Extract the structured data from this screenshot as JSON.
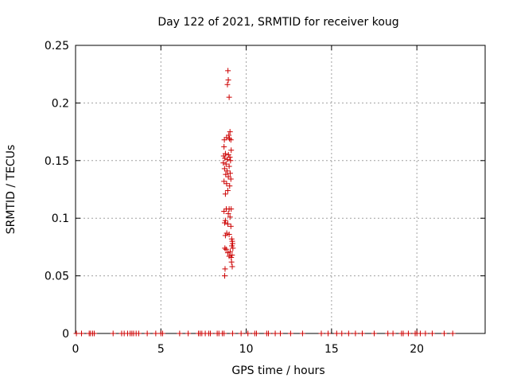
{
  "chart_data": {
    "type": "scatter",
    "title": "Day 122 of 2021, SRMTID for receiver koug",
    "xlabel": "GPS time / hours",
    "ylabel": "SRMTID / TECUs",
    "xlim": [
      0,
      24
    ],
    "ylim": [
      0,
      0.25
    ],
    "x_ticks": [
      0,
      5,
      10,
      15,
      20
    ],
    "y_ticks": [
      0,
      0.05,
      0.1,
      0.15,
      0.2,
      0.25
    ],
    "x_tick_labels": [
      "0",
      "5",
      "10",
      "15",
      "20"
    ],
    "y_tick_labels": [
      "0",
      "0.05",
      "0.1",
      "0.15",
      "0.2",
      "0.25"
    ],
    "grid": true,
    "marker": "+",
    "color": "#cc0000",
    "series": [
      {
        "points": [
          [
            8.93,
            0.228
          ],
          [
            8.95,
            0.22
          ],
          [
            8.9,
            0.216
          ],
          [
            9.0,
            0.205
          ],
          [
            9.05,
            0.175
          ],
          [
            8.98,
            0.172
          ],
          [
            8.85,
            0.17
          ],
          [
            9.02,
            0.169
          ],
          [
            8.72,
            0.168
          ],
          [
            9.1,
            0.168
          ],
          [
            8.7,
            0.162
          ],
          [
            9.12,
            0.159
          ],
          [
            8.78,
            0.156
          ],
          [
            8.96,
            0.155
          ],
          [
            8.68,
            0.154
          ],
          [
            9.04,
            0.153
          ],
          [
            8.75,
            0.152
          ],
          [
            8.9,
            0.151
          ],
          [
            9.08,
            0.15
          ],
          [
            8.66,
            0.148
          ],
          [
            8.82,
            0.147
          ],
          [
            9.0,
            0.145
          ],
          [
            8.73,
            0.143
          ],
          [
            8.88,
            0.141
          ],
          [
            9.06,
            0.139
          ],
          [
            8.8,
            0.138
          ],
          [
            8.95,
            0.136
          ],
          [
            9.1,
            0.134
          ],
          [
            8.7,
            0.132
          ],
          [
            8.85,
            0.13
          ],
          [
            9.03,
            0.128
          ],
          [
            8.92,
            0.124
          ],
          [
            8.78,
            0.121
          ],
          [
            8.83,
            0.108
          ],
          [
            9.0,
            0.108
          ],
          [
            9.12,
            0.108
          ],
          [
            8.7,
            0.106
          ],
          [
            8.95,
            0.104
          ],
          [
            9.05,
            0.101
          ],
          [
            8.78,
            0.098
          ],
          [
            8.74,
            0.096
          ],
          [
            8.92,
            0.095
          ],
          [
            9.1,
            0.093
          ],
          [
            8.86,
            0.087
          ],
          [
            9.0,
            0.086
          ],
          [
            8.78,
            0.085
          ],
          [
            9.15,
            0.082
          ],
          [
            9.18,
            0.08
          ],
          [
            9.2,
            0.078
          ],
          [
            9.16,
            0.076
          ],
          [
            8.75,
            0.074
          ],
          [
            9.22,
            0.074
          ],
          [
            8.82,
            0.073
          ],
          [
            9.06,
            0.071
          ],
          [
            8.92,
            0.07
          ],
          [
            9.17,
            0.068
          ],
          [
            9.0,
            0.067
          ],
          [
            9.12,
            0.066
          ],
          [
            9.14,
            0.062
          ],
          [
            9.18,
            0.058
          ],
          [
            8.76,
            0.056
          ],
          [
            8.74,
            0.05
          ],
          [
            0.05,
            0
          ],
          [
            0.35,
            0
          ],
          [
            0.8,
            0
          ],
          [
            0.88,
            0
          ],
          [
            1.0,
            0
          ],
          [
            1.1,
            0
          ],
          [
            2.2,
            0
          ],
          [
            2.7,
            0
          ],
          [
            2.85,
            0
          ],
          [
            3.05,
            0
          ],
          [
            3.2,
            0
          ],
          [
            3.3,
            0
          ],
          [
            3.4,
            0
          ],
          [
            3.55,
            0
          ],
          [
            3.7,
            0
          ],
          [
            4.2,
            0
          ],
          [
            4.7,
            0
          ],
          [
            5.0,
            0
          ],
          [
            5.1,
            0
          ],
          [
            6.1,
            0
          ],
          [
            6.6,
            0
          ],
          [
            7.2,
            0
          ],
          [
            7.3,
            0
          ],
          [
            7.4,
            0
          ],
          [
            7.6,
            0
          ],
          [
            7.8,
            0
          ],
          [
            7.9,
            0
          ],
          [
            8.3,
            0
          ],
          [
            8.4,
            0
          ],
          [
            8.6,
            0
          ],
          [
            8.7,
            0
          ],
          [
            9.2,
            0
          ],
          [
            9.7,
            0
          ],
          [
            10.1,
            0
          ],
          [
            10.5,
            0
          ],
          [
            10.6,
            0
          ],
          [
            11.2,
            0
          ],
          [
            11.3,
            0
          ],
          [
            11.7,
            0
          ],
          [
            12.0,
            0
          ],
          [
            12.6,
            0
          ],
          [
            13.3,
            0
          ],
          [
            14.4,
            0
          ],
          [
            14.8,
            0
          ],
          [
            15.3,
            0
          ],
          [
            15.6,
            0
          ],
          [
            16.0,
            0
          ],
          [
            16.4,
            0
          ],
          [
            16.8,
            0
          ],
          [
            17.5,
            0
          ],
          [
            18.3,
            0
          ],
          [
            18.6,
            0
          ],
          [
            19.1,
            0
          ],
          [
            19.2,
            0
          ],
          [
            19.5,
            0
          ],
          [
            19.9,
            0
          ],
          [
            20.0,
            0
          ],
          [
            20.2,
            0
          ],
          [
            20.5,
            0
          ],
          [
            20.9,
            0
          ],
          [
            21.6,
            0
          ],
          [
            22.1,
            0
          ]
        ]
      }
    ]
  }
}
